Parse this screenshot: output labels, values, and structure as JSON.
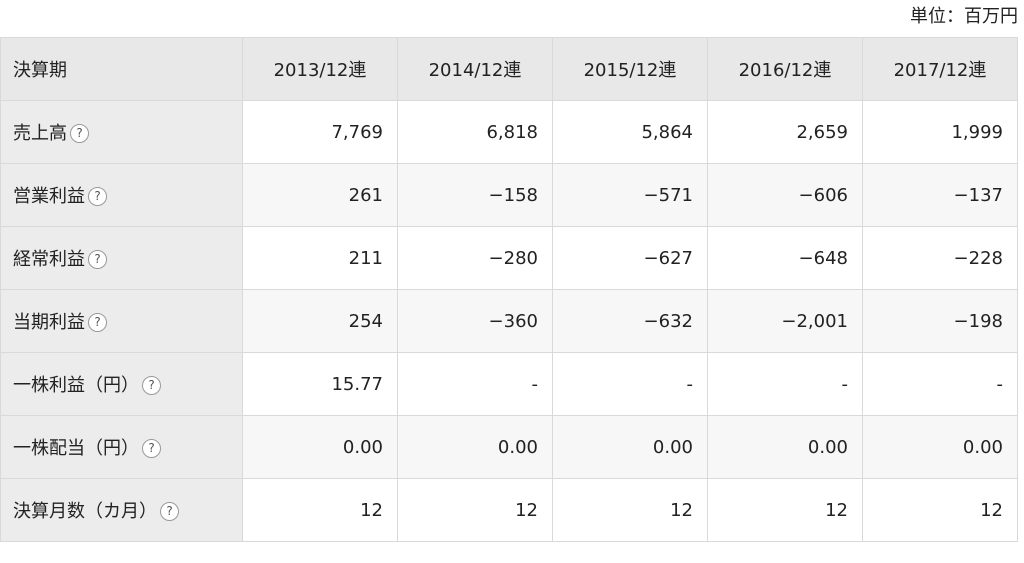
{
  "unit_label": "単位：百万円",
  "help_glyph": "?",
  "header": {
    "first": "決算期",
    "periods": [
      "2013/12連",
      "2014/12連",
      "2015/12連",
      "2016/12連",
      "2017/12連"
    ]
  },
  "rows": [
    {
      "label": "売上高",
      "values": [
        "7,769",
        "6,818",
        "5,864",
        "2,659",
        "1,999"
      ]
    },
    {
      "label": "営業利益",
      "values": [
        "261",
        "−158",
        "−571",
        "−606",
        "−137"
      ]
    },
    {
      "label": "経常利益",
      "values": [
        "211",
        "−280",
        "−627",
        "−648",
        "−228"
      ]
    },
    {
      "label": "当期利益",
      "values": [
        "254",
        "−360",
        "−632",
        "−2,001",
        "−198"
      ]
    },
    {
      "label": "一株利益（円）",
      "values": [
        "15.77",
        "-",
        "-",
        "-",
        "-"
      ]
    },
    {
      "label": "一株配当（円）",
      "values": [
        "0.00",
        "0.00",
        "0.00",
        "0.00",
        "0.00"
      ]
    },
    {
      "label": "決算月数（カ月）",
      "values": [
        "12",
        "12",
        "12",
        "12",
        "12"
      ]
    }
  ]
}
